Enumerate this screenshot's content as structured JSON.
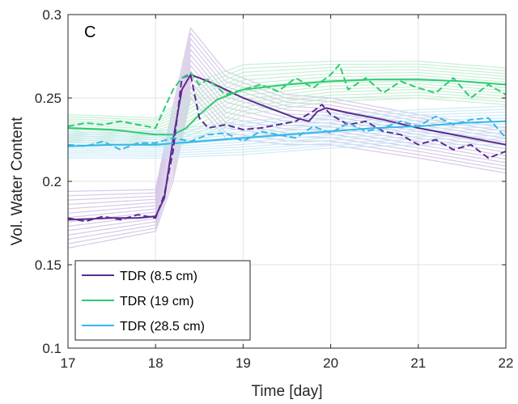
{
  "chart_data": {
    "type": "line",
    "panel_label": "C",
    "xlabel": "Time [day]",
    "ylabel": "Vol. Water Content",
    "xlim": [
      17,
      22
    ],
    "ylim": [
      0.1,
      0.3
    ],
    "x_ticks": [
      17,
      18,
      19,
      20,
      21,
      22
    ],
    "y_ticks": [
      0.1,
      0.15,
      0.2,
      0.25,
      0.3
    ],
    "x_tick_labels": [
      "17",
      "18",
      "19",
      "20",
      "21",
      "22"
    ],
    "y_tick_labels": [
      "0.1",
      "0.15",
      "0.2",
      "0.25",
      "0.3"
    ],
    "grid": true,
    "legend_position": "bottom-left",
    "colors": {
      "purple": "#5b2c8f",
      "green": "#2ecc71",
      "cyan": "#35b8e8"
    },
    "series": [
      {
        "name": "TDR (8.5 cm)",
        "color": "#5b2c8f",
        "style": "solid",
        "x": [
          17.0,
          17.5,
          17.8,
          18.0,
          18.1,
          18.2,
          18.3,
          18.4,
          18.6,
          18.8,
          19.0,
          19.3,
          19.6,
          19.75,
          19.85,
          19.95,
          20.2,
          20.6,
          21.0,
          21.5,
          22.0
        ],
        "y": [
          0.177,
          0.178,
          0.178,
          0.179,
          0.19,
          0.225,
          0.255,
          0.264,
          0.26,
          0.255,
          0.25,
          0.244,
          0.238,
          0.236,
          0.242,
          0.244,
          0.241,
          0.237,
          0.232,
          0.227,
          0.222
        ]
      },
      {
        "name": "TDR (19 cm)",
        "color": "#2ecc71",
        "style": "solid",
        "x": [
          17.0,
          17.5,
          18.0,
          18.2,
          18.35,
          18.5,
          18.7,
          19.0,
          19.5,
          20.0,
          20.5,
          21.0,
          21.5,
          22.0
        ],
        "y": [
          0.232,
          0.231,
          0.228,
          0.228,
          0.232,
          0.24,
          0.249,
          0.255,
          0.258,
          0.26,
          0.261,
          0.261,
          0.26,
          0.258
        ]
      },
      {
        "name": "TDR (28.5 cm)",
        "color": "#35b8e8",
        "style": "solid",
        "x": [
          17.0,
          17.5,
          18.0,
          18.5,
          19.0,
          19.5,
          20.0,
          20.5,
          21.0,
          21.5,
          22.0
        ],
        "y": [
          0.221,
          0.222,
          0.222,
          0.224,
          0.226,
          0.228,
          0.23,
          0.232,
          0.233,
          0.235,
          0.236
        ]
      },
      {
        "name": "",
        "color": "#5b2c8f",
        "style": "dashed",
        "x": [
          17.0,
          17.2,
          17.4,
          17.6,
          17.8,
          18.0,
          18.1,
          18.2,
          18.3,
          18.4,
          18.5,
          18.6,
          18.8,
          19.0,
          19.2,
          19.4,
          19.6,
          19.8,
          19.9,
          20.0,
          20.2,
          20.4,
          20.6,
          20.8,
          21.0,
          21.2,
          21.4,
          21.6,
          21.8,
          22.0
        ],
        "y": [
          0.178,
          0.176,
          0.179,
          0.177,
          0.18,
          0.178,
          0.192,
          0.218,
          0.262,
          0.264,
          0.238,
          0.232,
          0.234,
          0.231,
          0.232,
          0.234,
          0.236,
          0.242,
          0.246,
          0.24,
          0.234,
          0.236,
          0.23,
          0.228,
          0.222,
          0.225,
          0.219,
          0.222,
          0.214,
          0.218
        ]
      },
      {
        "name": "",
        "color": "#2ecc71",
        "style": "dashed",
        "x": [
          17.0,
          17.2,
          17.4,
          17.6,
          17.8,
          18.0,
          18.2,
          18.3,
          18.4,
          18.5,
          18.6,
          18.8,
          19.0,
          19.2,
          19.4,
          19.6,
          19.8,
          20.0,
          20.1,
          20.2,
          20.4,
          20.6,
          20.8,
          21.0,
          21.2,
          21.4,
          21.6,
          21.8,
          22.0
        ],
        "y": [
          0.233,
          0.235,
          0.234,
          0.236,
          0.234,
          0.232,
          0.255,
          0.262,
          0.265,
          0.258,
          0.261,
          0.252,
          0.255,
          0.258,
          0.254,
          0.262,
          0.256,
          0.264,
          0.27,
          0.255,
          0.262,
          0.253,
          0.26,
          0.256,
          0.253,
          0.262,
          0.25,
          0.258,
          0.252
        ]
      },
      {
        "name": "",
        "color": "#35b8e8",
        "style": "dashed",
        "x": [
          17.0,
          17.2,
          17.4,
          17.6,
          17.8,
          18.0,
          18.2,
          18.4,
          18.6,
          18.8,
          19.0,
          19.2,
          19.4,
          19.6,
          19.8,
          20.0,
          20.2,
          20.4,
          20.6,
          20.8,
          21.0,
          21.2,
          21.4,
          21.6,
          21.8,
          22.0
        ],
        "y": [
          0.222,
          0.221,
          0.224,
          0.219,
          0.223,
          0.223,
          0.226,
          0.224,
          0.228,
          0.229,
          0.224,
          0.23,
          0.228,
          0.226,
          0.233,
          0.229,
          0.235,
          0.23,
          0.232,
          0.236,
          0.233,
          0.239,
          0.234,
          0.237,
          0.238,
          0.226
        ]
      }
    ],
    "ensemble_bands": [
      {
        "color": "#d0c0e3",
        "x": [
          17,
          18,
          18.2,
          18.4,
          18.8,
          19.5,
          20,
          21,
          22
        ],
        "y_low": [
          0.16,
          0.17,
          0.2,
          0.25,
          0.226,
          0.222,
          0.222,
          0.214,
          0.205
        ],
        "y_high": [
          0.194,
          0.195,
          0.245,
          0.292,
          0.266,
          0.252,
          0.25,
          0.24,
          0.232
        ]
      },
      {
        "color": "#bdeccf",
        "x": [
          17,
          18,
          18.3,
          18.6,
          19,
          20,
          21,
          22
        ],
        "y_low": [
          0.224,
          0.221,
          0.222,
          0.226,
          0.24,
          0.248,
          0.25,
          0.246
        ],
        "y_high": [
          0.24,
          0.238,
          0.248,
          0.262,
          0.27,
          0.272,
          0.272,
          0.268
        ]
      },
      {
        "color": "#c6e8f6",
        "x": [
          17,
          18,
          19,
          20,
          21,
          22
        ],
        "y_low": [
          0.214,
          0.214,
          0.216,
          0.22,
          0.222,
          0.222
        ],
        "y_high": [
          0.229,
          0.23,
          0.236,
          0.24,
          0.243,
          0.245
        ]
      }
    ]
  }
}
